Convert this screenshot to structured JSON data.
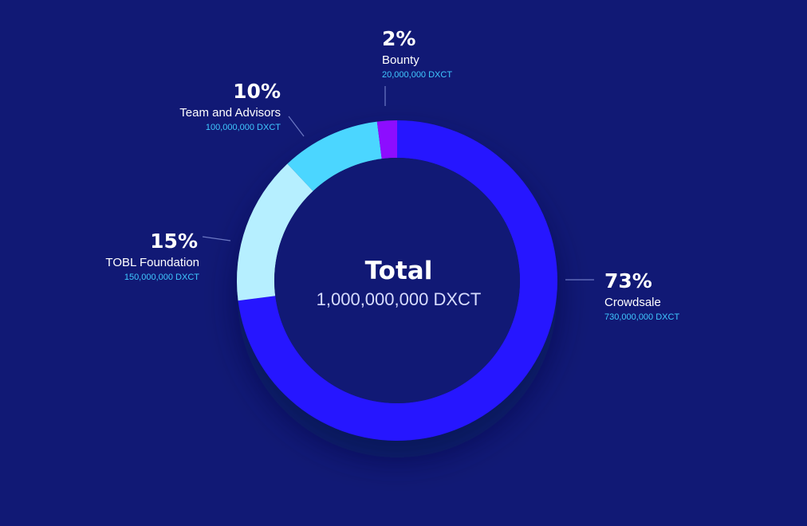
{
  "colors": {
    "background": "#111975",
    "crowdsale": "#2515ff",
    "tobl": "#b6efff",
    "team": "#4cd6ff",
    "bounty": "#8d10ff",
    "amount_text": "#40c8ff",
    "center_fill": "#111975"
  },
  "center": {
    "title": "Total",
    "value": "1,000,000,000 DXCT"
  },
  "chart_data": {
    "type": "pie",
    "variant": "donut",
    "categories": [
      "Crowdsale",
      "TOBL Foundation",
      "Team and Advisors",
      "Bounty"
    ],
    "values": [
      73,
      15,
      10,
      2
    ],
    "labels": [
      {
        "percent": "73%",
        "name": "Crowdsale",
        "amount": "730,000,000 DXCT"
      },
      {
        "percent": "15%",
        "name": "TOBL Foundation",
        "amount": "150,000,000 DXCT"
      },
      {
        "percent": "10%",
        "name": "Team and Advisors",
        "amount": "100,000,000 DXCT"
      },
      {
        "percent": "2%",
        "name": "Bounty",
        "amount": "20,000,000 DXCT"
      }
    ]
  }
}
